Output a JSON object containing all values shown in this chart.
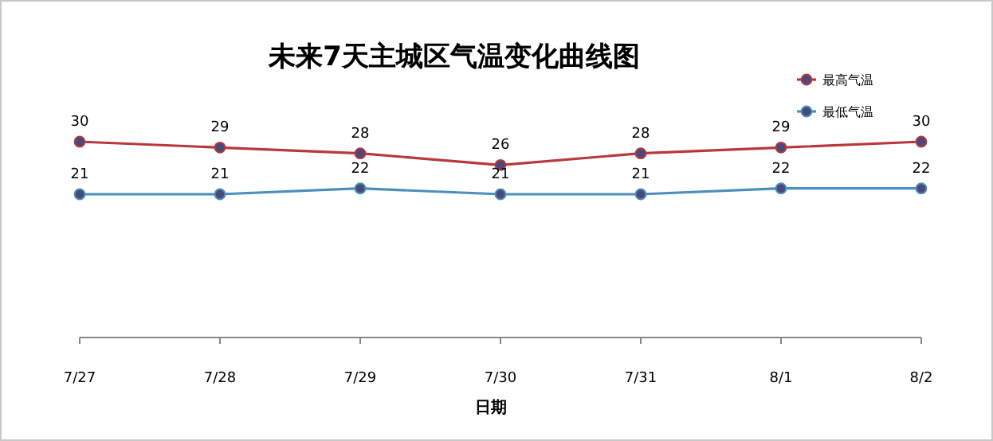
{
  "chart_data": {
    "type": "line",
    "title": "未来7天主城区气温变化曲线图",
    "xlabel": "日期",
    "categories": [
      "7/27",
      "7/28",
      "7/29",
      "7/30",
      "7/31",
      "8/1",
      "8/2"
    ],
    "series": [
      {
        "name": "最高气温",
        "color": "#b8383b",
        "values": [
          30,
          29,
          28,
          26,
          28,
          29,
          30
        ]
      },
      {
        "name": "最低气温",
        "color": "#4a8fbd",
        "values": [
          21,
          21,
          22,
          21,
          21,
          22,
          22
        ]
      }
    ],
    "data_labels": true,
    "legend": "top right",
    "marker": "circle"
  }
}
